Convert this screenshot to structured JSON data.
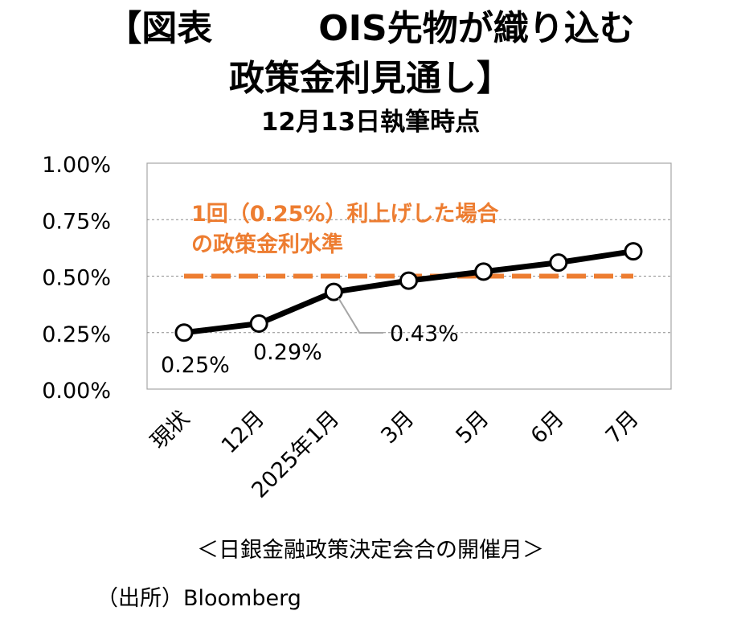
{
  "title": {
    "line1": "【図表　　　OIS先物が織り込む",
    "line2": "政策金利見通し】",
    "subtitle": "12月13日執筆時点"
  },
  "chart_data": {
    "type": "line",
    "categories": [
      "現状",
      "12月",
      "2025年1月",
      "3月",
      "5月",
      "6月",
      "7月"
    ],
    "series": [
      {
        "name": "OIS先物が織り込む政策金利",
        "values": [
          0.25,
          0.29,
          0.43,
          0.48,
          0.52,
          0.56,
          0.61
        ],
        "color": "#000000"
      }
    ],
    "reference_line": {
      "value": 0.5,
      "label_line1": "1回（0.25%）利上げした場合",
      "label_line2": "の政策金利水準",
      "color": "#ED7D31"
    },
    "yticks": [
      "0.00%",
      "0.25%",
      "0.50%",
      "0.75%",
      "1.00%"
    ],
    "ytick_values": [
      0,
      0.25,
      0.5,
      0.75,
      1.0
    ],
    "ylim": [
      0,
      1.0
    ],
    "data_labels": [
      {
        "index": 0,
        "text": "0.25%"
      },
      {
        "index": 1,
        "text": "0.29%"
      },
      {
        "index": 2,
        "text": "0.43%"
      }
    ],
    "xlabel": "＜日銀金融政策決定会合の開催月＞",
    "ylabel": "",
    "grid": true
  },
  "source": "（出所）Bloomberg"
}
